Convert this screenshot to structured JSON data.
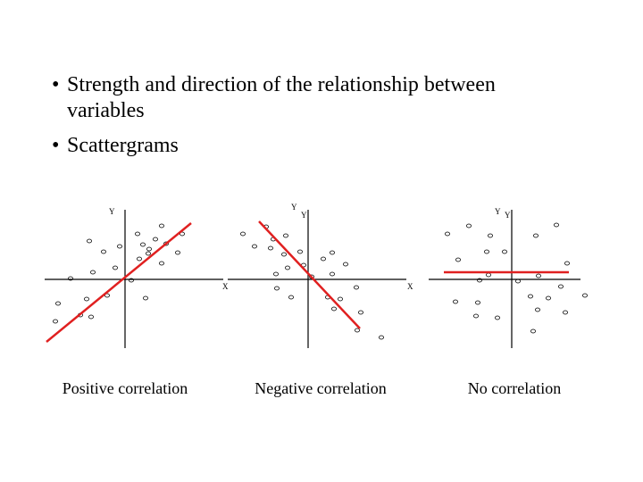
{
  "bullets": [
    "Strength and direction of the relationship between variables",
    "Scattergrams"
  ],
  "panels": [
    {
      "caption": "Positive correlation",
      "y_labels": [
        "Y"
      ],
      "x_label": "X"
    },
    {
      "caption": "Negative correlation",
      "y_labels": [
        "Y",
        "Y"
      ],
      "x_label": "X"
    },
    {
      "caption": "No correlation",
      "y_labels": [
        "Y",
        "Y"
      ]
    }
  ]
}
